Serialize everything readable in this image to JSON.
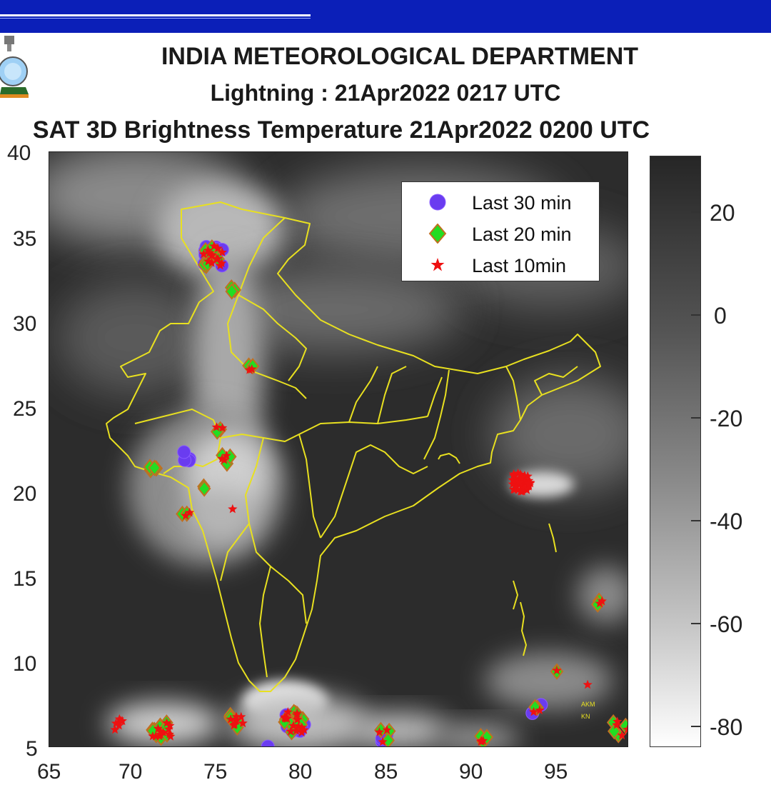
{
  "header": {
    "title_line_1": "INDIA METEOROLOGICAL DEPARTMENT",
    "title_line_2": "Lightning : 21Apr2022 0217 UTC",
    "title_line_3": "SAT 3D Brightness Temperature 21Apr2022   0200 UTC",
    "bar_color": "#0b1fb8"
  },
  "axes": {
    "x_ticks": [
      "65",
      "70",
      "75",
      "80",
      "85",
      "90",
      "95"
    ],
    "y_ticks": [
      "40",
      "35",
      "30",
      "25",
      "20",
      "15",
      "10",
      "5"
    ],
    "x_range": [
      65,
      99
    ],
    "y_range": [
      5,
      40
    ]
  },
  "legend": {
    "items": [
      {
        "label": "Last 30 min",
        "symbol": "circle",
        "color": "#6a3cf0"
      },
      {
        "label": "Last 20 min",
        "symbol": "diamond",
        "color": "#22dd22",
        "edge": "#c07020"
      },
      {
        "label": "Last 10min",
        "symbol": "star",
        "color": "#ee1111"
      }
    ]
  },
  "colorbar": {
    "labels": [
      "20",
      "0",
      "-20",
      "-40",
      "-60",
      "-80"
    ]
  },
  "map_text": {
    "akm": "AKM",
    "kn": "KN"
  },
  "colors": {
    "boundary": "#e8e020",
    "cloud_dark": "#2c2c2c",
    "cloud_bright": "#eeeeee"
  },
  "lightning_clusters": [
    {
      "lon": 74.6,
      "lat": 33.9,
      "count": 42,
      "spread": 0.6,
      "types": [
        "circle",
        "diamond",
        "star"
      ]
    },
    {
      "lon": 75.8,
      "lat": 32.0,
      "count": 3,
      "spread": 0.2,
      "types": [
        "diamond"
      ]
    },
    {
      "lon": 76.9,
      "lat": 27.4,
      "count": 4,
      "spread": 0.2,
      "types": [
        "diamond",
        "star"
      ]
    },
    {
      "lon": 75.0,
      "lat": 23.7,
      "count": 3,
      "spread": 0.2,
      "types": [
        "diamond",
        "star"
      ]
    },
    {
      "lon": 73.1,
      "lat": 22.1,
      "count": 4,
      "spread": 0.3,
      "types": [
        "circle"
      ]
    },
    {
      "lon": 75.4,
      "lat": 21.9,
      "count": 5,
      "spread": 0.3,
      "types": [
        "diamond",
        "star"
      ]
    },
    {
      "lon": 71.1,
      "lat": 21.2,
      "count": 4,
      "spread": 0.3,
      "types": [
        "diamond"
      ]
    },
    {
      "lon": 74.1,
      "lat": 20.2,
      "count": 2,
      "spread": 0.2,
      "types": [
        "diamond"
      ]
    },
    {
      "lon": 73.1,
      "lat": 18.9,
      "count": 3,
      "spread": 0.3,
      "types": [
        "diamond",
        "star"
      ]
    },
    {
      "lon": 75.8,
      "lat": 19.0,
      "count": 1,
      "spread": 0.1,
      "types": [
        "star"
      ]
    },
    {
      "lon": 92.7,
      "lat": 20.6,
      "count": 40,
      "spread": 0.55,
      "types": [
        "star"
      ]
    },
    {
      "lon": 97.3,
      "lat": 13.5,
      "count": 3,
      "spread": 0.15,
      "types": [
        "diamond",
        "star"
      ]
    },
    {
      "lon": 94.8,
      "lat": 9.4,
      "count": 2,
      "spread": 0.15,
      "types": [
        "diamond",
        "star"
      ]
    },
    {
      "lon": 93.6,
      "lat": 7.2,
      "count": 6,
      "spread": 0.35,
      "types": [
        "circle",
        "diamond",
        "star"
      ]
    },
    {
      "lon": 96.5,
      "lat": 8.8,
      "count": 1,
      "spread": 0.1,
      "types": [
        "star"
      ]
    },
    {
      "lon": 98.5,
      "lat": 6.2,
      "count": 7,
      "spread": 0.5,
      "types": [
        "diamond",
        "star"
      ]
    },
    {
      "lon": 79.4,
      "lat": 6.5,
      "count": 45,
      "spread": 0.6,
      "types": [
        "circle",
        "diamond",
        "star"
      ]
    },
    {
      "lon": 76.0,
      "lat": 6.6,
      "count": 14,
      "spread": 0.45,
      "types": [
        "diamond",
        "star"
      ]
    },
    {
      "lon": 71.6,
      "lat": 6.0,
      "count": 24,
      "spread": 0.55,
      "types": [
        "diamond",
        "star"
      ]
    },
    {
      "lon": 69.2,
      "lat": 6.4,
      "count": 6,
      "spread": 0.35,
      "types": [
        "star"
      ]
    },
    {
      "lon": 84.7,
      "lat": 5.7,
      "count": 8,
      "spread": 0.35,
      "types": [
        "circle",
        "diamond",
        "star"
      ]
    },
    {
      "lon": 90.6,
      "lat": 5.4,
      "count": 6,
      "spread": 0.3,
      "types": [
        "diamond",
        "star"
      ]
    },
    {
      "lon": 77.8,
      "lat": 5.1,
      "count": 1,
      "spread": 0.05,
      "types": [
        "circle"
      ]
    }
  ]
}
